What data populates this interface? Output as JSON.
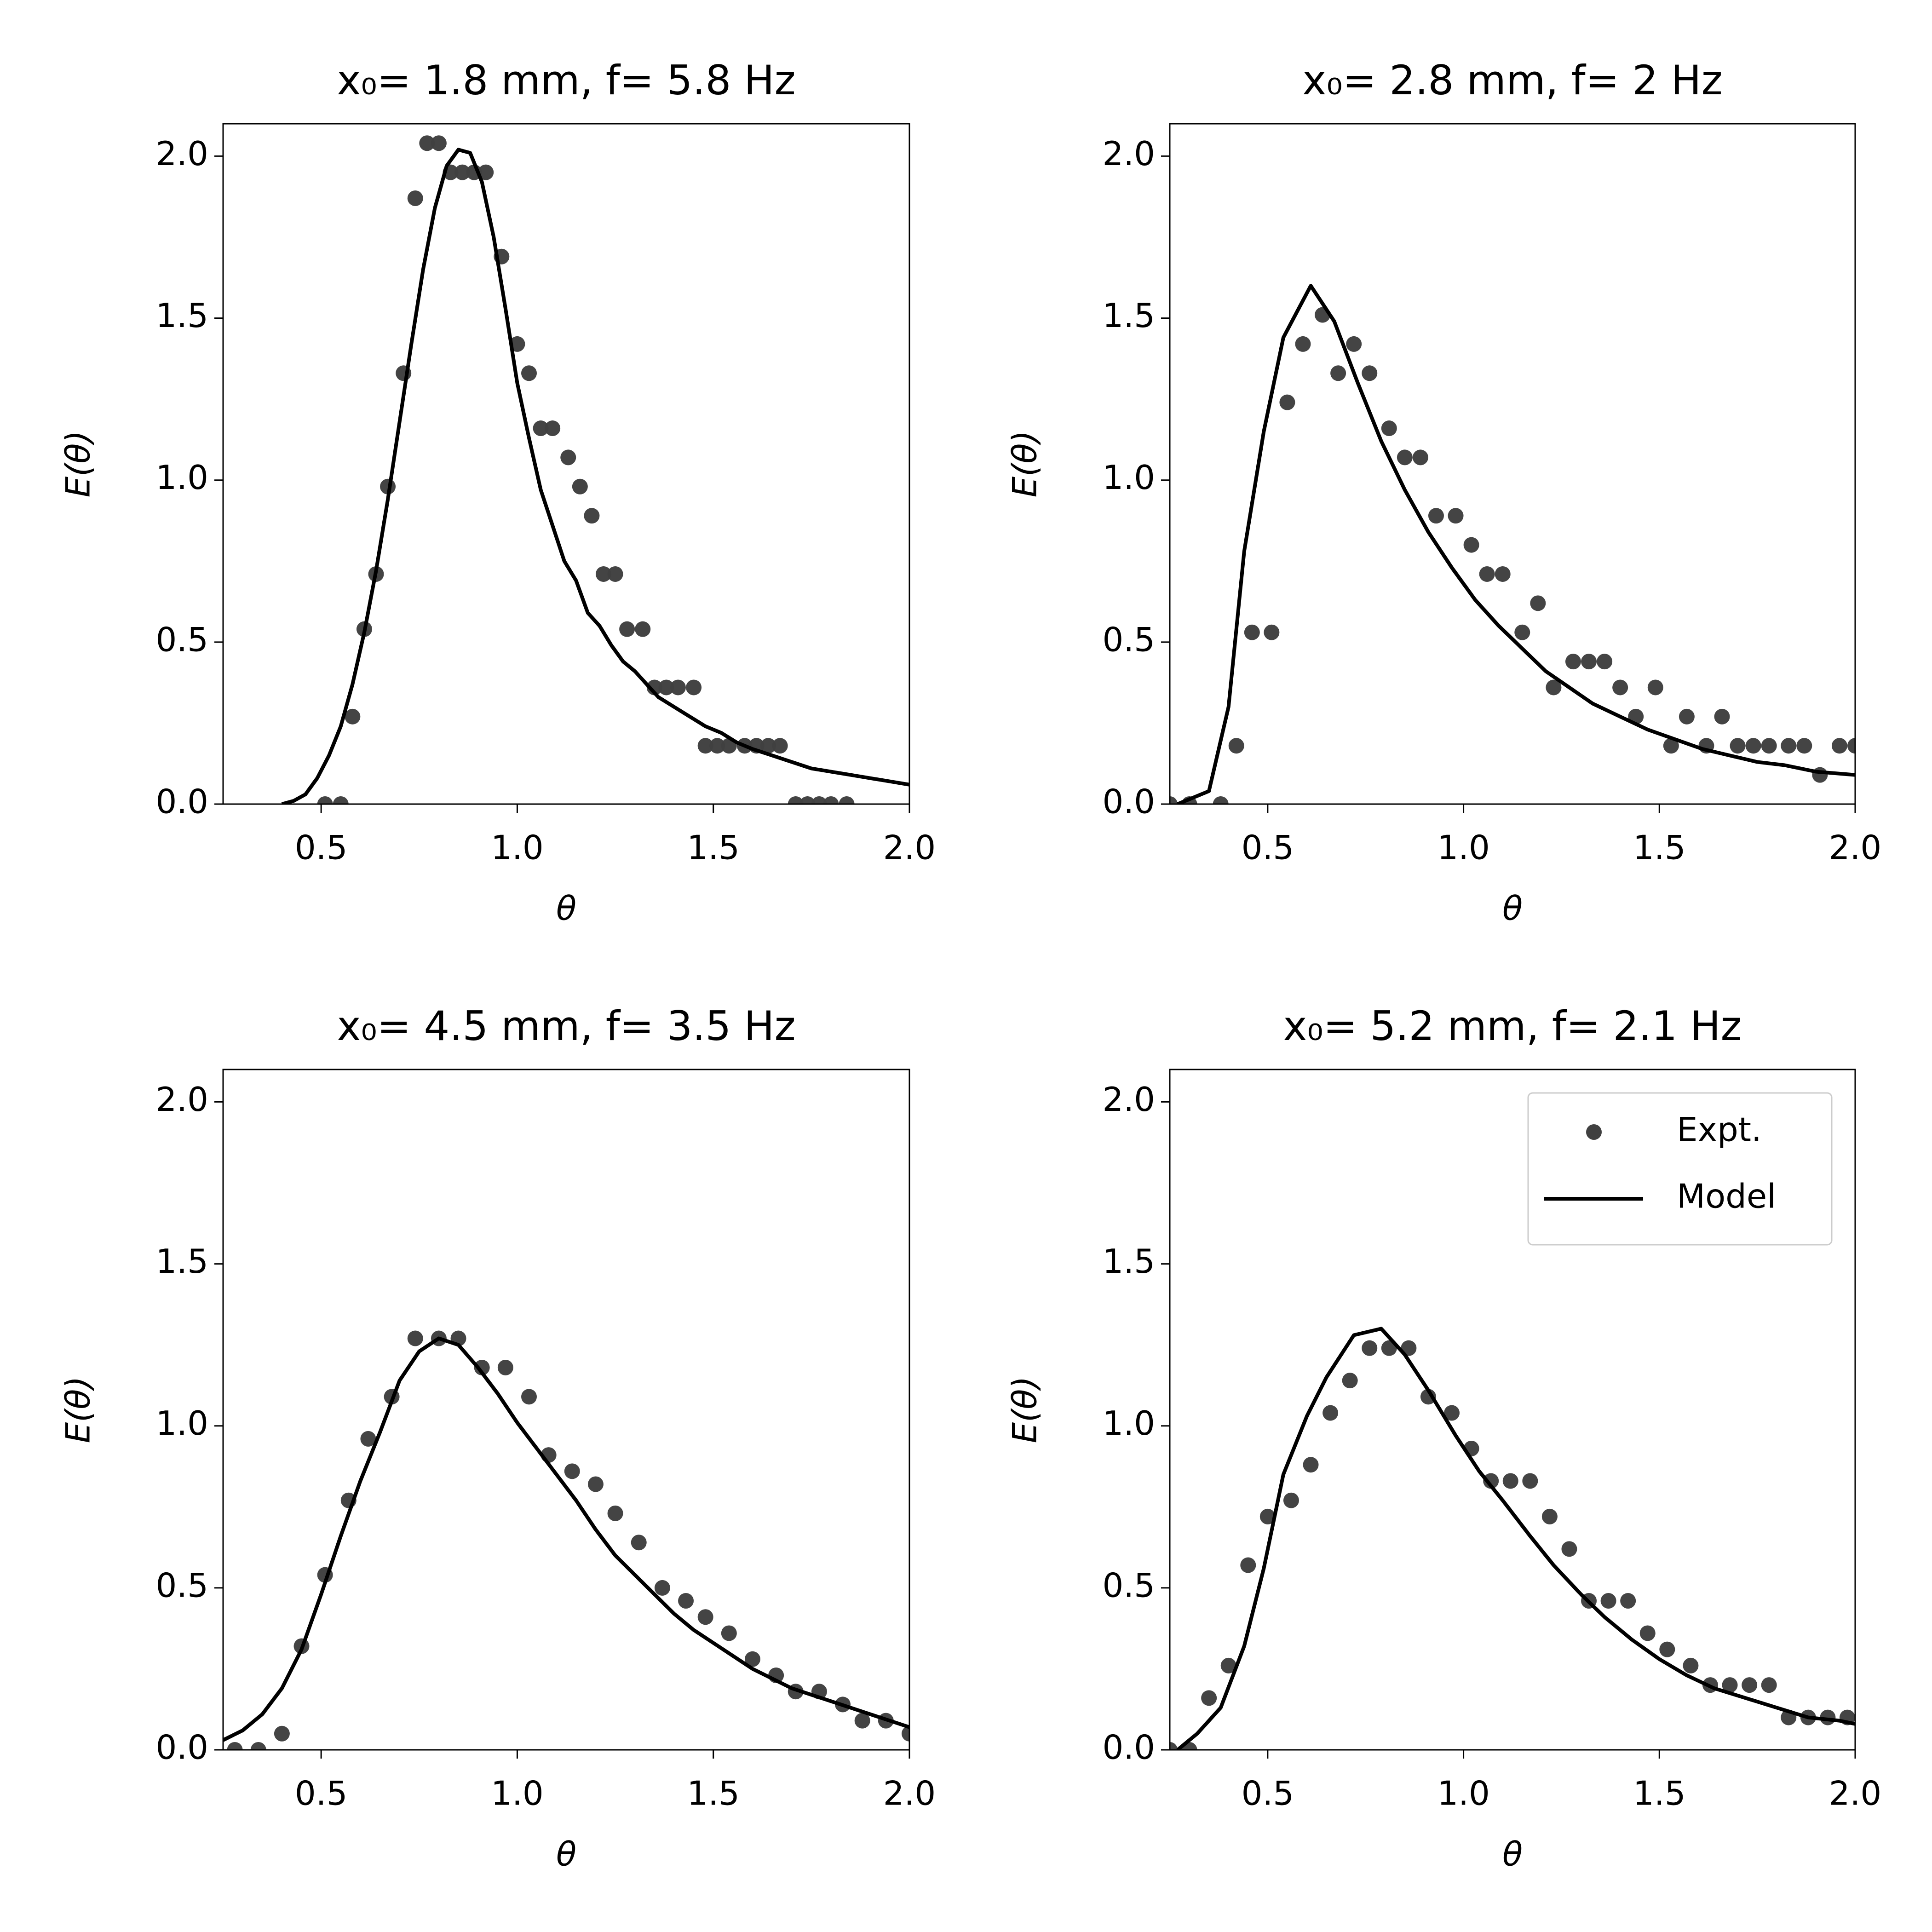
{
  "chart_data": [
    {
      "type": "scatter",
      "title": "x₀= 1.8 mm, f= 5.8 Hz",
      "x_label": "θ",
      "y_label": "E(θ)",
      "xlim": [
        0.25,
        2.0
      ],
      "ylim": [
        0,
        2.1
      ],
      "xticks": [
        0.5,
        {
          "value": 1,
          "label": "1.0"
        },
        1.5,
        {
          "value": 2,
          "label": "2.0"
        }
      ],
      "yticks": [
        {
          "value": 0,
          "label": "0.0"
        },
        0.5,
        {
          "value": 1,
          "label": "1.0"
        },
        1.5,
        {
          "value": 2,
          "label": "2.0"
        }
      ],
      "series": [
        {
          "type": "scatter",
          "color": "#404040",
          "x": [
            0.51,
            0.55,
            0.58,
            0.61,
            0.64,
            0.67,
            0.71,
            0.74,
            0.77,
            0.8,
            0.83,
            0.86,
            0.89,
            0.92,
            0.96,
            1.0,
            1.03,
            1.06,
            1.09,
            1.13,
            1.16,
            1.19,
            1.22,
            1.25,
            1.28,
            1.32,
            1.35,
            1.38,
            1.41,
            1.45,
            1.48,
            1.51,
            1.54,
            1.58,
            1.61,
            1.64,
            1.67,
            1.71,
            1.74,
            1.77,
            1.8,
            1.84
          ],
          "values": [
            0,
            0,
            0.27,
            0.54,
            0.71,
            0.98,
            1.33,
            1.87,
            2.04,
            2.04,
            1.95,
            1.95,
            1.95,
            1.95,
            1.69,
            1.42,
            1.33,
            1.16,
            1.16,
            1.07,
            0.98,
            0.89,
            0.71,
            0.71,
            0.54,
            0.54,
            0.36,
            0.36,
            0.36,
            0.36,
            0.18,
            0.18,
            0.18,
            0.18,
            0.18,
            0.18,
            0.18,
            0,
            0,
            0,
            0,
            0
          ]
        },
        {
          "type": "line",
          "color": "#000000",
          "x": [
            0.4,
            0.43,
            0.46,
            0.49,
            0.52,
            0.55,
            0.58,
            0.61,
            0.64,
            0.67,
            0.7,
            0.73,
            0.76,
            0.79,
            0.82,
            0.85,
            0.88,
            0.91,
            0.94,
            0.97,
            1.0,
            1.03,
            1.06,
            1.09,
            1.12,
            1.15,
            1.18,
            1.21,
            1.24,
            1.27,
            1.3,
            1.33,
            1.36,
            1.4,
            1.44,
            1.48,
            1.52,
            1.56,
            1.6,
            1.65,
            1.7,
            1.75,
            1.8,
            1.85,
            1.9,
            1.95,
            2.0
          ],
          "values": [
            0,
            0.01,
            0.03,
            0.08,
            0.15,
            0.24,
            0.37,
            0.53,
            0.72,
            0.94,
            1.18,
            1.42,
            1.65,
            1.84,
            1.97,
            2.02,
            2.01,
            1.92,
            1.75,
            1.53,
            1.3,
            1.13,
            0.97,
            0.86,
            0.75,
            0.69,
            0.59,
            0.55,
            0.49,
            0.44,
            0.41,
            0.37,
            0.33,
            0.3,
            0.27,
            0.24,
            0.22,
            0.19,
            0.17,
            0.15,
            0.13,
            0.11,
            0.1,
            0.09,
            0.08,
            0.07,
            0.06
          ]
        }
      ]
    },
    {
      "type": "scatter",
      "title": "x₀= 2.8 mm, f= 2 Hz",
      "x_label": "θ",
      "y_label": "E(θ)",
      "xlim": [
        0.25,
        2.0
      ],
      "ylim": [
        0,
        2.1
      ],
      "xticks": [
        0.5,
        {
          "value": 1,
          "label": "1.0"
        },
        1.5,
        {
          "value": 2,
          "label": "2.0"
        }
      ],
      "yticks": [
        {
          "value": 0,
          "label": "0.0"
        },
        0.5,
        {
          "value": 1,
          "label": "1.0"
        },
        1.5,
        {
          "value": 2,
          "label": "2.0"
        }
      ],
      "series": [
        {
          "type": "scatter",
          "color": "#404040",
          "x": [
            0.25,
            0.3,
            0.38,
            0.42,
            0.46,
            0.51,
            0.55,
            0.59,
            0.64,
            0.68,
            0.72,
            0.76,
            0.81,
            0.85,
            0.89,
            0.93,
            0.98,
            1.02,
            1.06,
            1.1,
            1.15,
            1.19,
            1.23,
            1.28,
            1.32,
            1.36,
            1.4,
            1.44,
            1.49,
            1.53,
            1.57,
            1.62,
            1.66,
            1.7,
            1.74,
            1.78,
            1.83,
            1.87,
            1.91,
            1.96,
            2.0
          ],
          "values": [
            0,
            0,
            0,
            0.18,
            0.53,
            0.53,
            1.24,
            1.42,
            1.51,
            1.33,
            1.42,
            1.33,
            1.16,
            1.07,
            1.07,
            0.89,
            0.89,
            0.8,
            0.71,
            0.71,
            0.53,
            0.62,
            0.36,
            0.44,
            0.44,
            0.44,
            0.36,
            0.27,
            0.36,
            0.18,
            0.27,
            0.18,
            0.27,
            0.18,
            0.18,
            0.18,
            0.18,
            0.18,
            0.09,
            0.18,
            0.18
          ]
        },
        {
          "type": "line",
          "color": "#000000",
          "x": [
            0.27,
            0.35,
            0.4,
            0.44,
            0.49,
            0.54,
            0.61,
            0.67,
            0.73,
            0.79,
            0.85,
            0.91,
            0.97,
            1.03,
            1.09,
            1.15,
            1.21,
            1.27,
            1.33,
            1.4,
            1.47,
            1.54,
            1.61,
            1.68,
            1.75,
            1.82,
            1.9,
            2.0
          ],
          "values": [
            0,
            0.04,
            0.3,
            0.78,
            1.15,
            1.44,
            1.6,
            1.49,
            1.3,
            1.12,
            0.97,
            0.84,
            0.73,
            0.63,
            0.55,
            0.48,
            0.41,
            0.36,
            0.31,
            0.27,
            0.23,
            0.2,
            0.17,
            0.15,
            0.13,
            0.12,
            0.1,
            0.09
          ]
        }
      ]
    },
    {
      "type": "scatter",
      "title": "x₀= 4.5 mm, f= 3.5 Hz",
      "x_label": "θ",
      "y_label": "E(θ)",
      "xlim": [
        0.25,
        2.0
      ],
      "ylim": [
        0,
        2.1
      ],
      "xticks": [
        0.5,
        {
          "value": 1,
          "label": "1.0"
        },
        1.5,
        {
          "value": 2,
          "label": "2.0"
        }
      ],
      "yticks": [
        {
          "value": 0,
          "label": "0.0"
        },
        0.5,
        {
          "value": 1,
          "label": "1.0"
        },
        1.5,
        {
          "value": 2,
          "label": "2.0"
        }
      ],
      "series": [
        {
          "type": "scatter",
          "color": "#404040",
          "x": [
            0.28,
            0.34,
            0.4,
            0.45,
            0.51,
            0.57,
            0.62,
            0.68,
            0.74,
            0.8,
            0.85,
            0.91,
            0.97,
            1.03,
            1.08,
            1.14,
            1.2,
            1.25,
            1.31,
            1.37,
            1.43,
            1.48,
            1.54,
            1.6,
            1.66,
            1.71,
            1.77,
            1.83,
            1.88,
            1.94,
            2.0
          ],
          "values": [
            0,
            0,
            0.05,
            0.32,
            0.54,
            0.77,
            0.96,
            1.09,
            1.27,
            1.27,
            1.27,
            1.18,
            1.18,
            1.09,
            0.91,
            0.86,
            0.82,
            0.73,
            0.64,
            0.5,
            0.46,
            0.41,
            0.36,
            0.28,
            0.23,
            0.18,
            0.18,
            0.14,
            0.09,
            0.09,
            0.05
          ]
        },
        {
          "type": "line",
          "color": "#000000",
          "x": [
            0.25,
            0.3,
            0.35,
            0.4,
            0.45,
            0.5,
            0.55,
            0.6,
            0.65,
            0.7,
            0.75,
            0.8,
            0.85,
            0.9,
            0.95,
            1.0,
            1.05,
            1.1,
            1.15,
            1.2,
            1.25,
            1.3,
            1.35,
            1.4,
            1.45,
            1.5,
            1.55,
            1.6,
            1.65,
            1.7,
            1.75,
            1.8,
            1.85,
            1.9,
            1.95,
            2.0
          ],
          "values": [
            0.03,
            0.06,
            0.11,
            0.19,
            0.31,
            0.48,
            0.66,
            0.83,
            0.98,
            1.14,
            1.23,
            1.27,
            1.25,
            1.18,
            1.1,
            1.01,
            0.93,
            0.85,
            0.77,
            0.68,
            0.6,
            0.54,
            0.48,
            0.42,
            0.37,
            0.33,
            0.29,
            0.25,
            0.22,
            0.19,
            0.17,
            0.15,
            0.13,
            0.11,
            0.09,
            0.07
          ]
        }
      ]
    },
    {
      "type": "scatter",
      "title": "x₀= 5.2 mm, f= 2.1 Hz",
      "x_label": "θ",
      "y_label": "E(θ)",
      "xlim": [
        0.25,
        2.0
      ],
      "ylim": [
        0,
        2.1
      ],
      "xticks": [
        0.5,
        {
          "value": 1,
          "label": "1.0"
        },
        1.5,
        {
          "value": 2,
          "label": "2.0"
        }
      ],
      "yticks": [
        {
          "value": 0,
          "label": "0.0"
        },
        0.5,
        {
          "value": 1,
          "label": "1.0"
        },
        1.5,
        {
          "value": 2,
          "label": "2.0"
        }
      ],
      "legend": "upper right",
      "series": [
        {
          "name": "Expt.",
          "type": "scatter",
          "color": "#404040",
          "x": [
            0.25,
            0.3,
            0.35,
            0.4,
            0.45,
            0.5,
            0.56,
            0.61,
            0.66,
            0.71,
            0.76,
            0.81,
            0.86,
            0.91,
            0.97,
            1.02,
            1.07,
            1.12,
            1.17,
            1.22,
            1.27,
            1.32,
            1.37,
            1.42,
            1.47,
            1.52,
            1.58,
            1.63,
            1.68,
            1.73,
            1.78,
            1.83,
            1.88,
            1.93,
            1.98
          ],
          "values": [
            0,
            0,
            0.16,
            0.26,
            0.57,
            0.72,
            0.77,
            0.88,
            1.04,
            1.14,
            1.24,
            1.24,
            1.24,
            1.09,
            1.04,
            0.93,
            0.83,
            0.83,
            0.83,
            0.72,
            0.62,
            0.46,
            0.46,
            0.46,
            0.36,
            0.31,
            0.26,
            0.2,
            0.2,
            0.2,
            0.2,
            0.1,
            0.1,
            0.1,
            0.1
          ]
        },
        {
          "name": "Model",
          "type": "line",
          "color": "#000000",
          "x": [
            0.27,
            0.32,
            0.38,
            0.44,
            0.49,
            0.54,
            0.6,
            0.65,
            0.72,
            0.79,
            0.85,
            0.91,
            0.98,
            1.04,
            1.1,
            1.17,
            1.23,
            1.3,
            1.36,
            1.43,
            1.5,
            1.57,
            1.64,
            1.72,
            1.8,
            1.88,
            1.96,
            2.0
          ],
          "values": [
            0,
            0.05,
            0.13,
            0.32,
            0.56,
            0.85,
            1.03,
            1.15,
            1.28,
            1.3,
            1.22,
            1.11,
            0.97,
            0.86,
            0.77,
            0.66,
            0.57,
            0.48,
            0.41,
            0.34,
            0.28,
            0.23,
            0.19,
            0.16,
            0.13,
            0.1,
            0.09,
            0.08
          ]
        }
      ]
    }
  ]
}
